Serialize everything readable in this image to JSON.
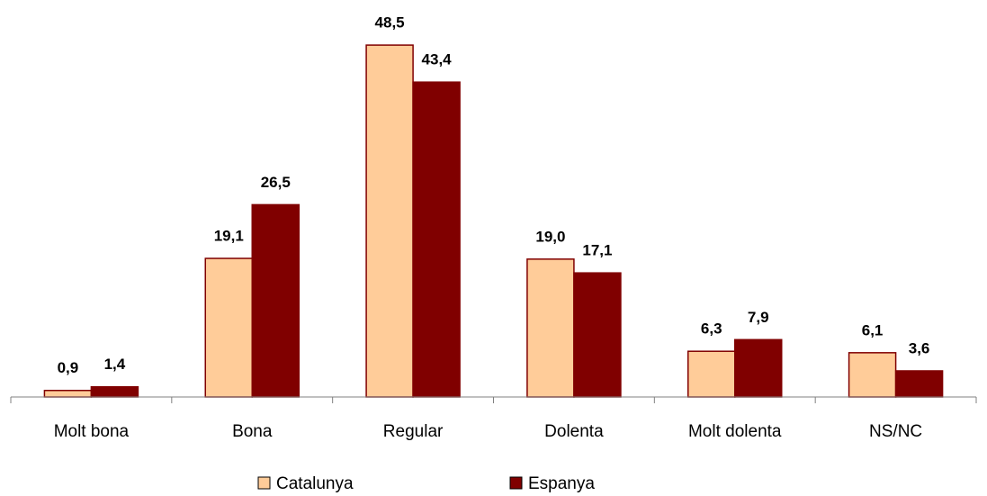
{
  "chart_data": {
    "type": "bar",
    "categories": [
      "Molt bona",
      "Bona",
      "Regular",
      "Dolenta",
      "Molt dolenta",
      "NS/NC"
    ],
    "series": [
      {
        "name": "Catalunya",
        "color": "#FFCC99",
        "values": [
          0.9,
          19.1,
          48.5,
          19.0,
          6.3,
          6.1
        ],
        "value_labels": [
          "0,9",
          "19,1",
          "48,5",
          "19,0",
          "6,3",
          "6,1"
        ]
      },
      {
        "name": "Espanya",
        "color": "#800000",
        "values": [
          1.4,
          26.5,
          43.4,
          17.1,
          7.9,
          3.6
        ],
        "value_labels": [
          "1,4",
          "26,5",
          "43,4",
          "17,1",
          "7,9",
          "3,6"
        ]
      }
    ],
    "ylim": [
      0,
      50
    ]
  }
}
